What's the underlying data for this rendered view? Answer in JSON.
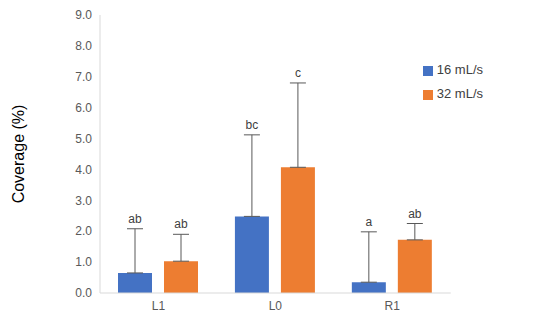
{
  "chart_data": {
    "type": "bar",
    "y_label": "Coverage (%)",
    "categories": [
      "L1",
      "L0",
      "R1"
    ],
    "series": [
      {
        "name": "16 mL/s",
        "color": "#4472c4",
        "values": [
          0.65,
          2.48,
          0.35
        ],
        "errors": [
          1.43,
          2.64,
          1.63
        ],
        "labels": [
          "ab",
          "bc",
          "a"
        ]
      },
      {
        "name": "32 mL/s",
        "color": "#ed7d31",
        "values": [
          1.03,
          4.07,
          1.72
        ],
        "errors": [
          0.87,
          2.73,
          0.53
        ],
        "labels": [
          "ab",
          "c",
          "ab"
        ]
      }
    ],
    "ylim": [
      0,
      9
    ],
    "yticks": [
      {
        "value": 0,
        "label": "0.0"
      },
      {
        "value": 1,
        "label": "1.0"
      },
      {
        "value": 2,
        "label": "2.0"
      },
      {
        "value": 3,
        "label": "3.0"
      },
      {
        "value": 4,
        "label": "4.0"
      },
      {
        "value": 5,
        "label": "5.0"
      },
      {
        "value": 6,
        "label": "6.0"
      },
      {
        "value": 7,
        "label": "7.0"
      },
      {
        "value": 8,
        "label": "8.0"
      },
      {
        "value": 9,
        "label": "9.0"
      }
    ],
    "grid": false,
    "legend": "right"
  }
}
